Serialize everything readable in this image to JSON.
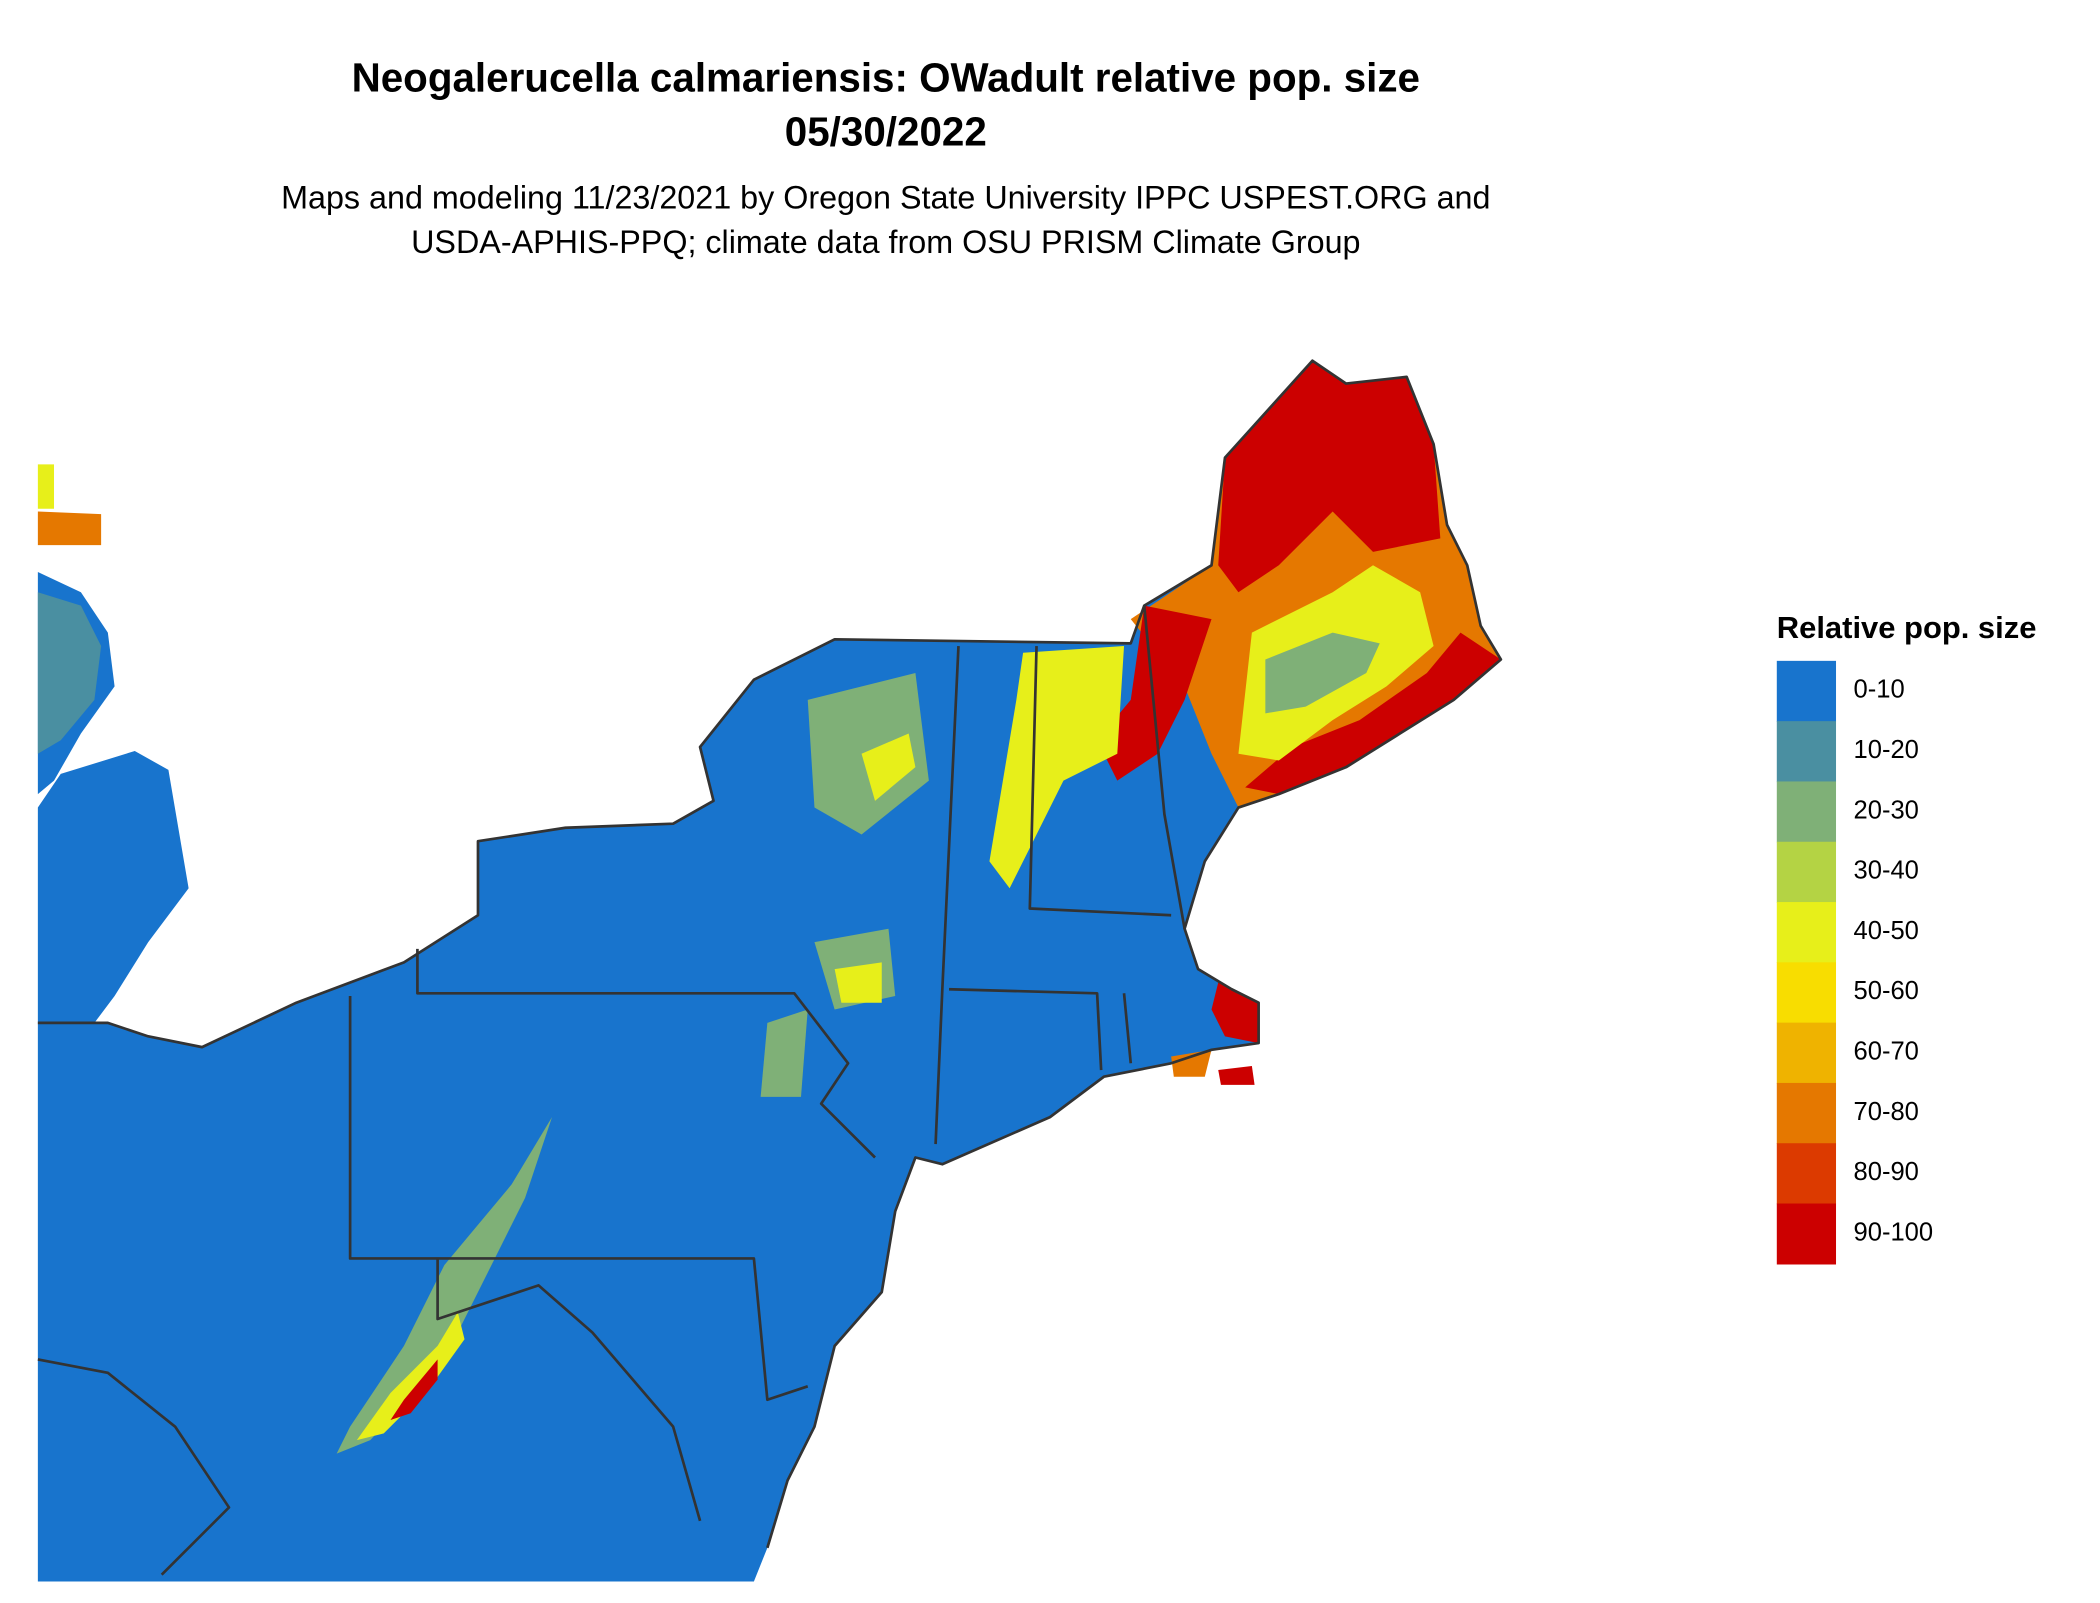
{
  "title": "Neogalerucella calmariensis: OWadult relative pop. size",
  "date": "05/30/2022",
  "subtitle": [
    "Maps and modeling 11/23/2021 by Oregon State University IPPC USPEST.ORG and",
    "USDA-APHIS-PPQ; climate data from OSU PRISM Climate Group"
  ],
  "legend": {
    "title": "Relative pop. size",
    "items": [
      {
        "label": "0-10",
        "color": "#1874cd"
      },
      {
        "label": "10-20",
        "color": "#4a8fa1"
      },
      {
        "label": "20-30",
        "color": "#7fb077"
      },
      {
        "label": "30-40",
        "color": "#b4d344"
      },
      {
        "label": "40-50",
        "color": "#e7ef1a"
      },
      {
        "label": "50-60",
        "color": "#f8dd00"
      },
      {
        "label": "60-70",
        "color": "#efb300"
      },
      {
        "label": "70-80",
        "color": "#e57800"
      },
      {
        "label": "80-90",
        "color": "#dc3a00"
      },
      {
        "label": "90-100",
        "color": "#cc0000"
      }
    ]
  }
}
